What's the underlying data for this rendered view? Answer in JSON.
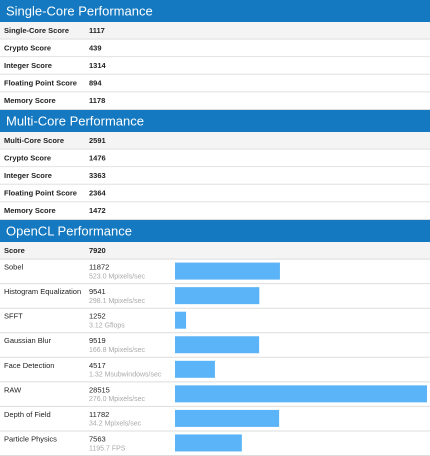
{
  "sections": [
    {
      "title": "Single-Core Performance",
      "rows": [
        {
          "name": "Single-Core Score",
          "score": 1117
        },
        {
          "name": "Crypto Score",
          "score": 439
        },
        {
          "name": "Integer Score",
          "score": 1314
        },
        {
          "name": "Floating Point Score",
          "score": 894
        },
        {
          "name": "Memory Score",
          "score": 1178
        }
      ]
    },
    {
      "title": "Multi-Core Performance",
      "rows": [
        {
          "name": "Multi-Core Score",
          "score": 2591
        },
        {
          "name": "Crypto Score",
          "score": 1476
        },
        {
          "name": "Integer Score",
          "score": 3363
        },
        {
          "name": "Floating Point Score",
          "score": 2364
        },
        {
          "name": "Memory Score",
          "score": 1472
        }
      ]
    },
    {
      "title": "OpenCL Performance",
      "rows": [
        {
          "name": "Score",
          "score": 7920
        }
      ],
      "workloads": [
        {
          "name": "Sobel",
          "score": 11872,
          "detail": "523.0 Mpixels/sec"
        },
        {
          "name": "Histogram Equalization",
          "score": 9541,
          "detail": "298.1 Mpixels/sec"
        },
        {
          "name": "SFFT",
          "score": 1252,
          "detail": "3.12 Gflops"
        },
        {
          "name": "Gaussian Blur",
          "score": 9519,
          "detail": "166.8 Mpixels/sec"
        },
        {
          "name": "Face Detection",
          "score": 4517,
          "detail": "1.32 Msubwindows/sec"
        },
        {
          "name": "RAW",
          "score": 28515,
          "detail": "276.0 Mpixels/sec"
        },
        {
          "name": "Depth of Field",
          "score": 11782,
          "detail": "34.2 Mpixels/sec"
        },
        {
          "name": "Particle Physics",
          "score": 7563,
          "detail": "1195.7 FPS"
        }
      ]
    }
  ]
}
